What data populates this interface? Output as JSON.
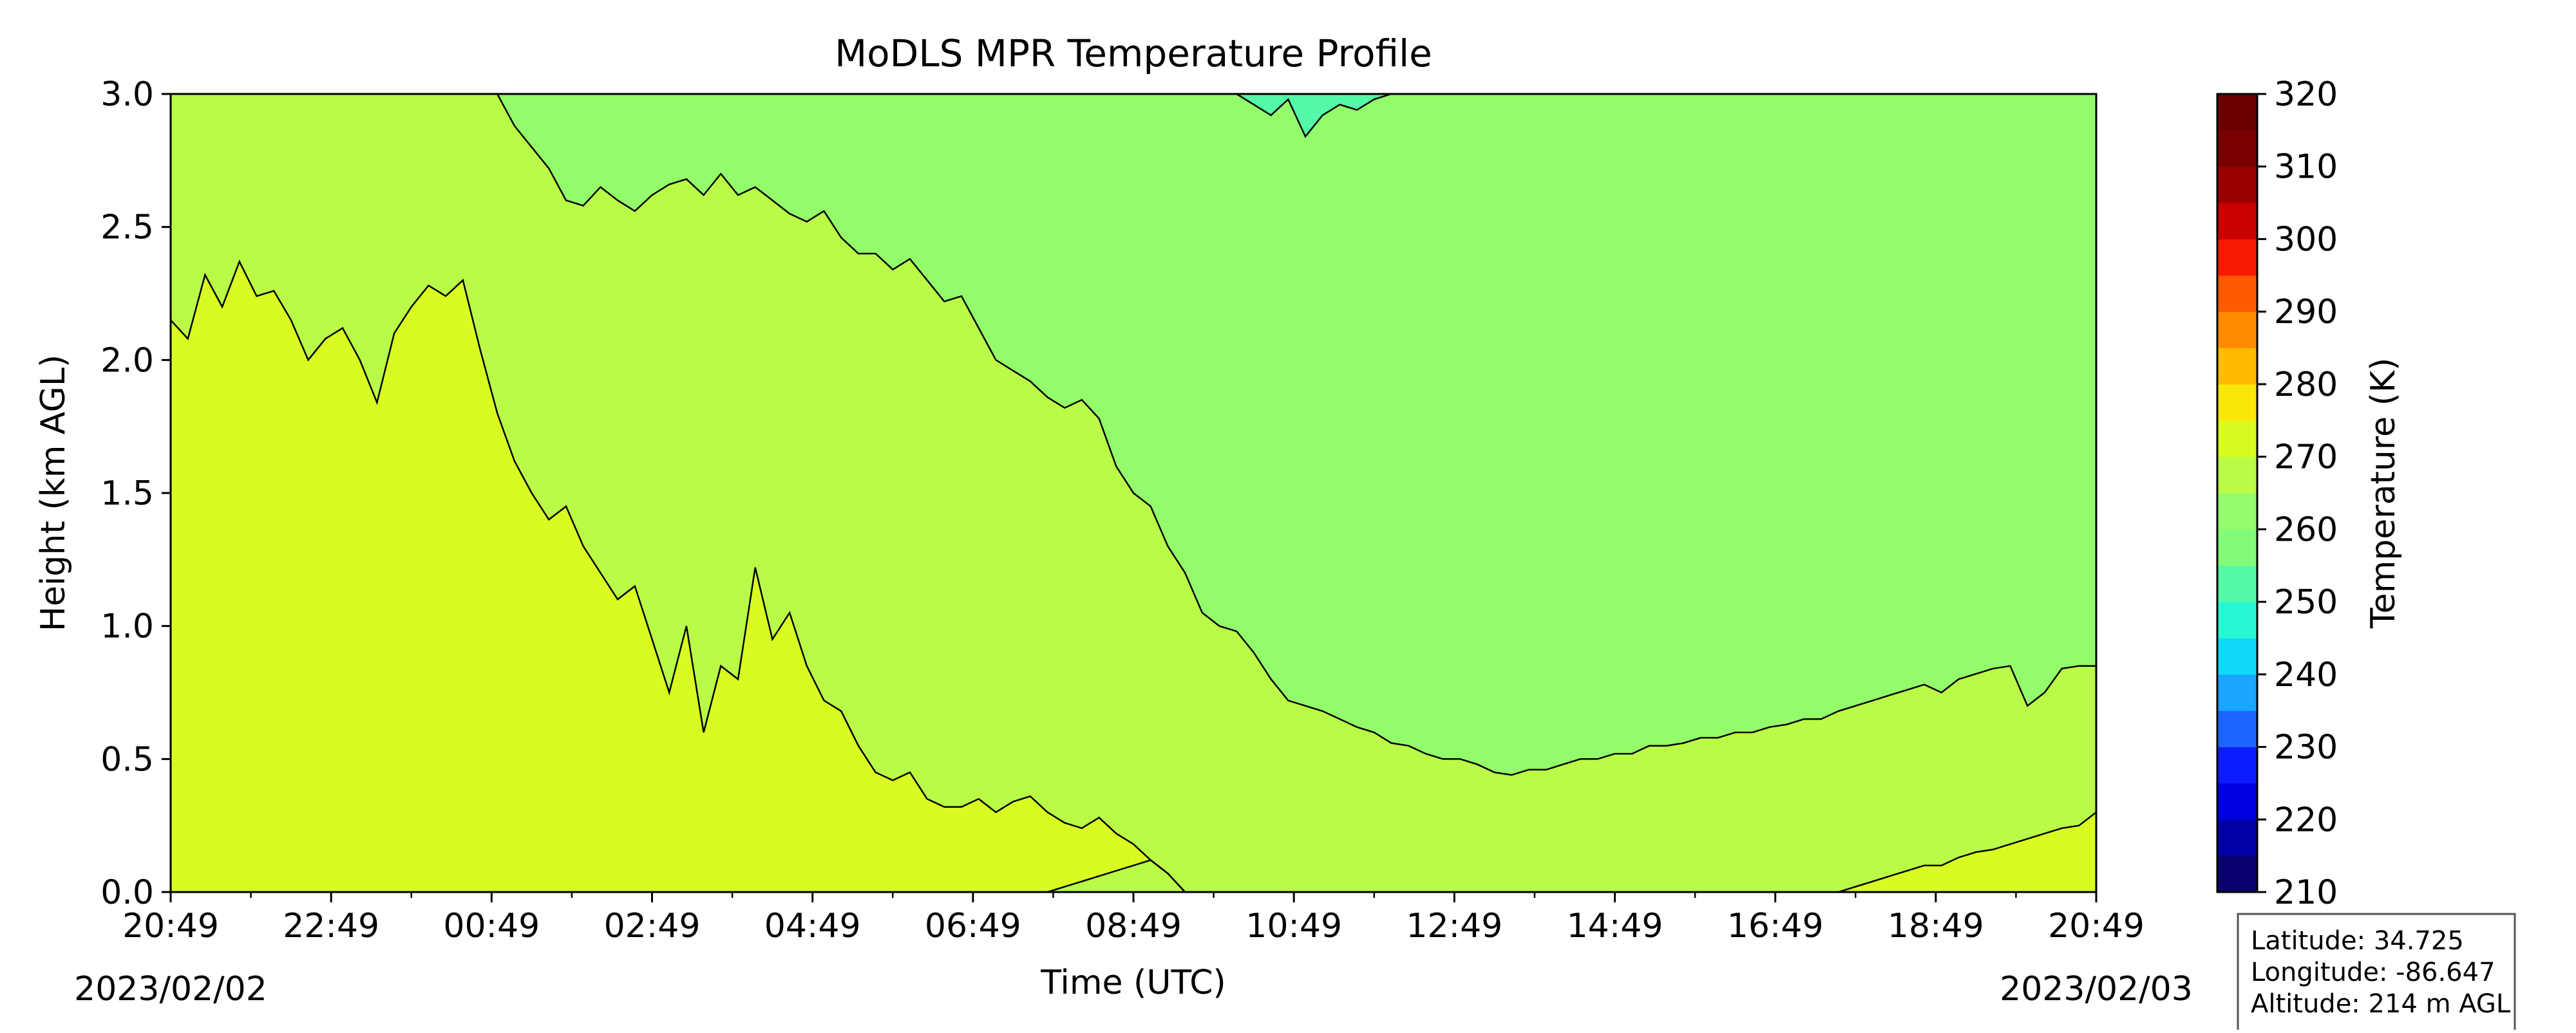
{
  "chart_data": {
    "type": "heatmap",
    "subtype": "filled-contour",
    "title": "MoDLS MPR Temperature Profile",
    "xlabel": "Time (UTC)",
    "ylabel": "Height (km AGL)",
    "x_ticks": [
      "20:49",
      "22:49",
      "00:49",
      "02:49",
      "04:49",
      "06:49",
      "08:49",
      "10:49",
      "12:49",
      "14:49",
      "16:49",
      "18:49",
      "20:49"
    ],
    "x_range_hours": [
      0,
      24
    ],
    "start_date": "2023/02/02",
    "end_date": "2023/02/03",
    "ylim": [
      0.0,
      3.0
    ],
    "y_ticks": [
      0.0,
      0.5,
      1.0,
      1.5,
      2.0,
      2.5,
      3.0
    ],
    "y_tick_labels": [
      "0.0",
      "0.5",
      "1.0",
      "1.5",
      "2.0",
      "2.5",
      "3.0"
    ],
    "colorbar": {
      "label": "Temperature (K)",
      "range": [
        210,
        320
      ],
      "step": 5,
      "tick_values": [
        210,
        220,
        230,
        240,
        250,
        260,
        270,
        280,
        290,
        300,
        310,
        320
      ],
      "tick_labels": [
        "210",
        "220",
        "230",
        "240",
        "250",
        "260",
        "270",
        "280",
        "290",
        "300",
        "310",
        "320"
      ],
      "colors": [
        "#0a006e",
        "#0000a8",
        "#0000e0",
        "#0d1cff",
        "#1c64ff",
        "#1aa5ff",
        "#10d8f8",
        "#29f7d4",
        "#54f9a7",
        "#83fb78",
        "#92fc6a",
        "#b9fb46",
        "#d9fb21",
        "#fbe60a",
        "#ffbb00",
        "#ff8c00",
        "#ff5a00",
        "#f81a00",
        "#c90000",
        "#9b0000",
        "#7a0000",
        "#6a0000"
      ]
    },
    "bands": [
      {
        "fill": "#d9fb21",
        "top_km": [
          2.15,
          2.08,
          2.32,
          2.2,
          2.37,
          2.24,
          2.26,
          2.15,
          2.0,
          2.08,
          2.12,
          2.0,
          1.84,
          2.1,
          2.2,
          2.28,
          2.24,
          2.3,
          2.04,
          1.8,
          1.62,
          1.5,
          1.4,
          1.45,
          1.3,
          1.2,
          1.1,
          1.15,
          0.95,
          0.75,
          1.0,
          0.6,
          0.85,
          0.8,
          1.22,
          0.95,
          1.05,
          0.85,
          0.72,
          0.68,
          0.55,
          0.45,
          0.42,
          0.45,
          0.35,
          0.32,
          0.32,
          0.35,
          0.3,
          0.34,
          0.36,
          0.3,
          0.26,
          0.24,
          0.28,
          0.22,
          0.18,
          0.12,
          0.07,
          0.0,
          0.0,
          0.0,
          0.0,
          0.0,
          0.0,
          0.0,
          0.0,
          0.0,
          0.0,
          0.0,
          0.0,
          0.0,
          0.0,
          0.0,
          0.0,
          0.0,
          0.0,
          0.0,
          0.0,
          0.0,
          0.0,
          0.0,
          0.0,
          0.0,
          0.0,
          0.0,
          0.0,
          0.0,
          0.0,
          0.0,
          0.0,
          0.0,
          0.0,
          0.0,
          0.0,
          0.0,
          0.0,
          0.0,
          0.02,
          0.04,
          0.06,
          0.08,
          0.1,
          0.1,
          0.13,
          0.15,
          0.16,
          0.18,
          0.2,
          0.22,
          0.24,
          0.25,
          0.3
        ],
        "bottom_km": [
          0,
          0,
          0,
          0,
          0,
          0,
          0,
          0,
          0,
          0,
          0,
          0,
          0,
          0,
          0,
          0,
          0,
          0,
          0,
          0,
          0,
          0,
          0,
          0,
          0,
          0,
          0,
          0,
          0,
          0,
          0,
          0,
          0,
          0,
          0,
          0,
          0,
          0,
          0,
          0,
          0,
          0,
          0,
          0,
          0,
          0,
          0,
          0,
          0,
          0,
          0,
          0,
          0.02,
          0.04,
          0.06,
          0.08,
          0.1,
          0.12,
          0.07,
          0.0,
          0,
          0,
          0,
          0,
          0,
          0,
          0,
          0,
          0,
          0,
          0,
          0,
          0,
          0,
          0,
          0,
          0,
          0,
          0,
          0,
          0,
          0,
          0,
          0,
          0,
          0,
          0,
          0,
          0,
          0,
          0,
          0,
          0,
          0,
          0,
          0,
          0,
          0,
          0,
          0,
          0,
          0,
          0,
          0,
          0,
          0,
          0,
          0,
          0,
          0,
          0,
          0,
          0
        ]
      },
      {
        "fill": "#b9fb46",
        "top_km": [
          3.0,
          3.0,
          3.0,
          3.0,
          3.0,
          3.0,
          3.0,
          3.0,
          3.0,
          3.0,
          3.0,
          3.0,
          3.0,
          3.0,
          3.0,
          3.0,
          3.0,
          3.0,
          3.0,
          3.0,
          2.88,
          2.8,
          2.72,
          2.6,
          2.58,
          2.65,
          2.6,
          2.56,
          2.62,
          2.66,
          2.68,
          2.62,
          2.7,
          2.62,
          2.65,
          2.6,
          2.55,
          2.52,
          2.56,
          2.46,
          2.4,
          2.4,
          2.34,
          2.38,
          2.3,
          2.22,
          2.24,
          2.12,
          2.0,
          1.96,
          1.92,
          1.86,
          1.82,
          1.85,
          1.78,
          1.6,
          1.5,
          1.45,
          1.3,
          1.2,
          1.05,
          1.0,
          0.98,
          0.9,
          0.8,
          0.72,
          0.7,
          0.68,
          0.65,
          0.62,
          0.6,
          0.56,
          0.55,
          0.52,
          0.5,
          0.5,
          0.48,
          0.45,
          0.44,
          0.46,
          0.46,
          0.48,
          0.5,
          0.5,
          0.52,
          0.52,
          0.55,
          0.55,
          0.56,
          0.58,
          0.58,
          0.6,
          0.6,
          0.62,
          0.63,
          0.65,
          0.65,
          0.68,
          0.7,
          0.72,
          0.74,
          0.76,
          0.78,
          0.75,
          0.8,
          0.82,
          0.84,
          0.85,
          0.7,
          0.75,
          0.84,
          0.85,
          0.85
        ]
      },
      {
        "fill": "#92fc6a",
        "top_km": [
          3.0,
          3.0,
          3.0,
          3.0,
          3.0,
          3.0,
          3.0,
          3.0,
          3.0,
          3.0,
          3.0,
          3.0,
          3.0,
          3.0,
          3.0,
          3.0,
          3.0,
          3.0,
          3.0,
          3.0,
          3.0,
          3.0,
          3.0,
          3.0,
          3.0,
          3.0,
          3.0,
          3.0,
          3.0,
          3.0,
          3.0,
          3.0,
          3.0,
          3.0,
          3.0,
          3.0,
          3.0,
          3.0,
          3.0,
          3.0,
          3.0,
          3.0,
          3.0,
          3.0,
          3.0,
          3.0,
          3.0,
          3.0,
          3.0,
          3.0,
          3.0,
          3.0,
          3.0,
          3.0,
          3.0,
          3.0,
          3.0,
          3.0,
          3.0,
          3.0,
          3.0,
          3.0,
          3.0,
          2.96,
          2.92,
          2.98,
          2.84,
          2.92,
          2.96,
          2.94,
          2.98,
          3.0,
          3.0,
          3.0,
          3.0,
          3.0,
          3.0,
          3.0,
          3.0,
          3.0,
          3.0,
          3.0,
          3.0,
          3.0,
          3.0,
          3.0,
          3.0,
          3.0,
          3.0,
          3.0,
          3.0,
          3.0,
          3.0,
          3.0,
          3.0,
          3.0,
          3.0,
          3.0,
          3.0,
          3.0,
          3.0,
          3.0,
          3.0,
          3.0,
          3.0,
          3.0,
          3.0,
          3.0,
          3.0,
          3.0,
          3.0,
          3.0,
          3.0
        ]
      }
    ],
    "info_box": {
      "latitude": "Latitude: 34.725",
      "longitude": "Longitude: -86.647",
      "altitude": "Altitude: 214 m AGL"
    }
  }
}
